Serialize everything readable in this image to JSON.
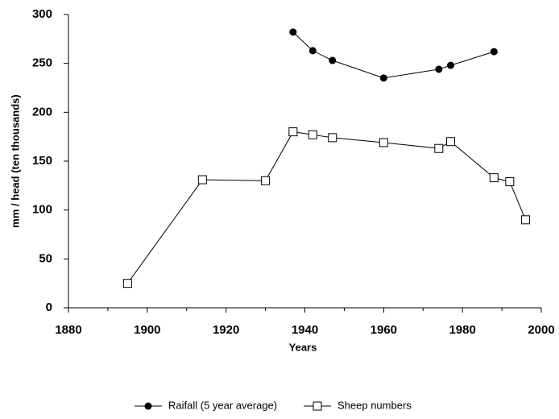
{
  "chart_data": {
    "type": "line",
    "xlabel": "Years",
    "ylabel": "mm / head (ten thousands)",
    "xlim": [
      1880,
      2000
    ],
    "xticks": [
      1880,
      1900,
      1920,
      1940,
      1960,
      1980,
      2000
    ],
    "xminor_ticks": [
      1890,
      1910,
      1930,
      1950,
      1970,
      1990
    ],
    "ylim": [
      0,
      300
    ],
    "yticks": [
      0,
      50,
      100,
      150,
      200,
      250,
      300
    ],
    "grid": false,
    "legend": "bottom",
    "series": [
      {
        "name": "Raifall (5 year average)",
        "color": "#000000",
        "marker": "filled-circle",
        "x": [
          1937,
          1942,
          1947,
          1960,
          1974,
          1977,
          1988
        ],
        "values": [
          282,
          263,
          253,
          235,
          244,
          248,
          262
        ]
      },
      {
        "name": "Sheep numbers",
        "color": "#000000",
        "marker": "open-square",
        "x": [
          1895,
          1914,
          1930,
          1937,
          1942,
          1947,
          1960,
          1974,
          1977,
          1988,
          1992,
          1996
        ],
        "values": [
          25,
          131,
          130,
          180,
          177,
          174,
          169,
          163,
          170,
          133,
          129,
          90
        ]
      }
    ]
  }
}
